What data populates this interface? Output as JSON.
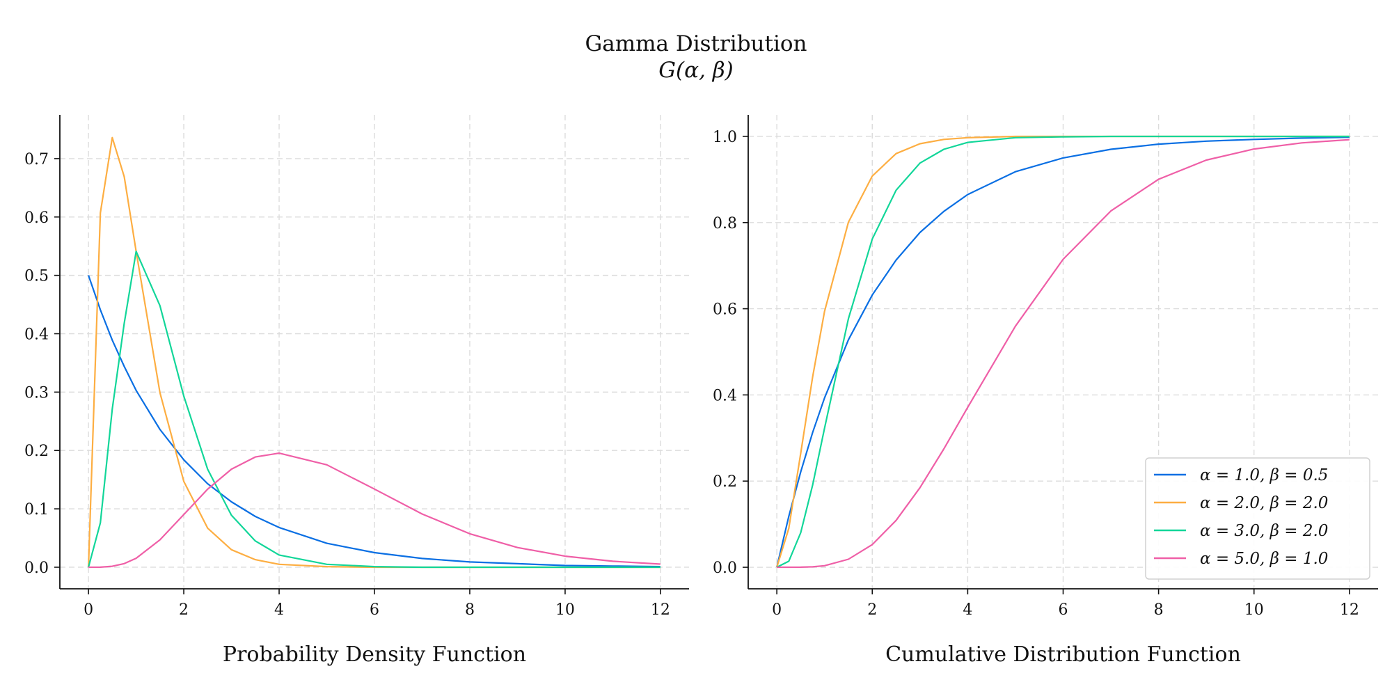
{
  "figure": {
    "title": "Gamma Distribution",
    "subtitle": "G(α, β)"
  },
  "chart_data": [
    {
      "type": "line",
      "title": "",
      "xlabel": "Probability Density Function",
      "ylabel": "",
      "xlim": [
        -0.6,
        12.6
      ],
      "ylim": [
        -0.037,
        0.775
      ],
      "xticks": [
        0,
        2,
        4,
        6,
        8,
        10,
        12
      ],
      "yticks": [
        0.0,
        0.1,
        0.2,
        0.3,
        0.4,
        0.5,
        0.6,
        0.7
      ],
      "grid": true,
      "x": [
        0,
        0.25,
        0.5,
        0.75,
        1,
        1.5,
        2,
        2.5,
        3,
        3.5,
        4,
        5,
        6,
        7,
        8,
        9,
        10,
        11,
        12
      ],
      "series": [
        {
          "color": "#0a6fe3",
          "values": [
            0.5,
            0.441,
            0.389,
            0.344,
            0.303,
            0.236,
            0.184,
            0.143,
            0.112,
            0.087,
            0.068,
            0.041,
            0.025,
            0.015,
            0.009,
            0.006,
            0.003,
            0.002,
            0.001
          ]
        },
        {
          "color": "#fdae42",
          "values": [
            0.0,
            0.607,
            0.736,
            0.669,
            0.541,
            0.299,
            0.147,
            0.067,
            0.03,
            0.013,
            0.005,
            0.001,
            0.0,
            0.0,
            0.0,
            0.0,
            0.0,
            0.0,
            0.0
          ]
        },
        {
          "color": "#12d699",
          "values": [
            0.0,
            0.076,
            0.271,
            0.418,
            0.541,
            0.448,
            0.293,
            0.168,
            0.089,
            0.045,
            0.021,
            0.005,
            0.001,
            0.0,
            0.0,
            0.0,
            0.0,
            0.0,
            0.0
          ]
        },
        {
          "color": "#ef5fa7",
          "values": [
            0.0,
            0.0001,
            0.0016,
            0.0062,
            0.0153,
            0.047,
            0.0902,
            0.1336,
            0.168,
            0.1888,
            0.1954,
            0.1755,
            0.1339,
            0.0912,
            0.0573,
            0.0337,
            0.0189,
            0.0102,
            0.0053
          ]
        }
      ]
    },
    {
      "type": "line",
      "title": "",
      "xlabel": "Cumulative Distribution Function",
      "ylabel": "",
      "xlim": [
        -0.6,
        12.6
      ],
      "ylim": [
        -0.05,
        1.05
      ],
      "xticks": [
        0,
        2,
        4,
        6,
        8,
        10,
        12
      ],
      "yticks": [
        0.0,
        0.2,
        0.4,
        0.6,
        0.8,
        1.0
      ],
      "grid": true,
      "legend_position": "bottom-right",
      "x": [
        0,
        0.25,
        0.5,
        0.75,
        1,
        1.5,
        2,
        2.5,
        3,
        3.5,
        4,
        5,
        6,
        7,
        8,
        9,
        10,
        11,
        12
      ],
      "series": [
        {
          "name": "α = 1.0, β = 0.5",
          "color": "#0a6fe3",
          "values": [
            0.0,
            0.118,
            0.221,
            0.313,
            0.393,
            0.528,
            0.632,
            0.713,
            0.777,
            0.826,
            0.865,
            0.918,
            0.95,
            0.97,
            0.982,
            0.989,
            0.993,
            0.996,
            0.998
          ]
        },
        {
          "name": "α = 2.0, β = 2.0",
          "color": "#fdae42",
          "values": [
            0.0,
            0.09,
            0.264,
            0.442,
            0.594,
            0.801,
            0.908,
            0.96,
            0.983,
            0.993,
            0.997,
            1.0,
            1.0,
            1.0,
            1.0,
            1.0,
            1.0,
            1.0,
            1.0
          ]
        },
        {
          "name": "α = 3.0, β = 2.0",
          "color": "#12d699",
          "values": [
            0.0,
            0.014,
            0.08,
            0.191,
            0.323,
            0.577,
            0.762,
            0.875,
            0.938,
            0.97,
            0.986,
            0.997,
            0.999,
            1.0,
            1.0,
            1.0,
            1.0,
            1.0,
            1.0
          ]
        },
        {
          "name": "α = 5.0, β = 1.0",
          "color": "#ef5fa7",
          "values": [
            0.0,
            0.0,
            0.0002,
            0.001,
            0.0037,
            0.0186,
            0.0527,
            0.1088,
            0.1847,
            0.2746,
            0.3712,
            0.5595,
            0.7149,
            0.827,
            0.9004,
            0.945,
            0.9707,
            0.9849,
            0.9924
          ]
        }
      ]
    }
  ]
}
